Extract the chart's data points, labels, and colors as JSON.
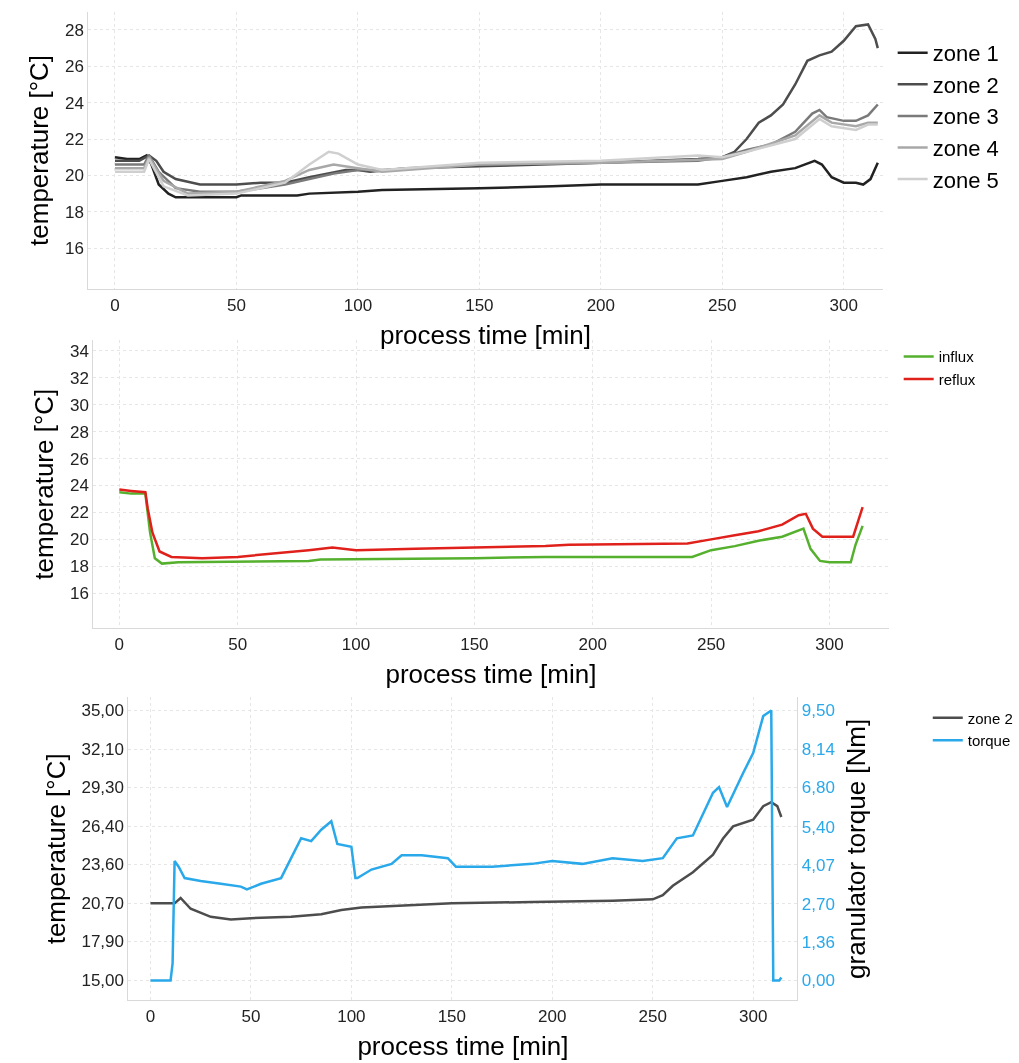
{
  "chart_data": [
    {
      "type": "line",
      "xlabel": "process time [min]",
      "ylabel": "temperature [°C]",
      "xlim": [
        -11,
        316
      ],
      "xticks": [
        0,
        50,
        100,
        150,
        200,
        250,
        300
      ],
      "ylim": [
        13.75,
        29
      ],
      "yticks": [
        16,
        18,
        20,
        22,
        24,
        26,
        28
      ],
      "grid": true,
      "legend": "top right",
      "series": [
        {
          "name": "zone 1",
          "color": "#222222",
          "x": [
            0,
            5,
            10,
            13,
            15,
            18,
            22,
            25,
            40,
            50,
            52,
            75,
            80,
            100,
            110,
            150,
            180,
            200,
            240,
            250,
            260,
            270,
            280,
            288,
            291,
            295,
            300,
            305,
            308,
            311,
            314
          ],
          "values": [
            21.0,
            20.9,
            20.9,
            21.1,
            20.6,
            19.5,
            19.0,
            18.8,
            18.8,
            18.8,
            18.9,
            18.9,
            19.0,
            19.1,
            19.2,
            19.3,
            19.4,
            19.5,
            19.5,
            19.7,
            19.9,
            20.2,
            20.4,
            20.8,
            20.6,
            19.9,
            19.6,
            19.6,
            19.5,
            19.8,
            20.7
          ]
        },
        {
          "name": "zone 2",
          "color": "#4d4d4d",
          "x": [
            0,
            10,
            14,
            17,
            20,
            25,
            35,
            50,
            60,
            70,
            80,
            95,
            100,
            105,
            120,
            150,
            200,
            240,
            250,
            255,
            260,
            265,
            270,
            275,
            280,
            285,
            290,
            295,
            300,
            305,
            310,
            313,
            314
          ],
          "values": [
            20.8,
            20.8,
            21.1,
            20.8,
            20.2,
            19.8,
            19.5,
            19.5,
            19.6,
            19.6,
            19.9,
            20.3,
            20.3,
            20.2,
            20.4,
            20.5,
            20.7,
            20.9,
            21.0,
            21.3,
            22.0,
            22.9,
            23.3,
            23.9,
            25.0,
            26.3,
            26.6,
            26.8,
            27.4,
            28.2,
            28.3,
            27.5,
            27.0
          ]
        },
        {
          "name": "zone 3",
          "color": "#7a7a7a",
          "x": [
            0,
            12,
            14,
            18,
            25,
            35,
            50,
            60,
            70,
            80,
            90,
            100,
            110,
            150,
            200,
            240,
            250,
            260,
            270,
            280,
            287,
            290,
            293,
            300,
            305,
            310,
            314
          ],
          "values": [
            20.6,
            20.6,
            21.1,
            20.2,
            19.3,
            19.1,
            19.1,
            19.3,
            19.5,
            19.8,
            20.1,
            20.3,
            20.3,
            20.6,
            20.7,
            20.8,
            21.0,
            21.4,
            21.7,
            22.4,
            23.4,
            23.6,
            23.2,
            23.0,
            23.0,
            23.3,
            23.9
          ]
        },
        {
          "name": "zone 4",
          "color": "#a8a8a8",
          "x": [
            0,
            12,
            14,
            20,
            30,
            50,
            70,
            80,
            90,
            100,
            110,
            150,
            200,
            250,
            260,
            280,
            290,
            295,
            305,
            310,
            314
          ],
          "values": [
            20.4,
            20.4,
            21.0,
            19.7,
            19.0,
            19.1,
            19.7,
            20.3,
            20.6,
            20.4,
            20.2,
            20.6,
            20.7,
            20.9,
            21.3,
            22.2,
            23.3,
            22.9,
            22.7,
            22.9,
            22.9
          ]
        },
        {
          "name": "zone 5",
          "color": "#cfcfcf",
          "x": [
            0,
            12,
            14,
            20,
            30,
            50,
            70,
            80,
            88,
            92,
            100,
            110,
            150,
            200,
            240,
            250,
            260,
            280,
            290,
            295,
            305,
            310,
            314
          ],
          "values": [
            20.2,
            20.2,
            20.9,
            19.4,
            18.9,
            19.0,
            19.6,
            20.6,
            21.3,
            21.2,
            20.6,
            20.3,
            20.7,
            20.8,
            21.1,
            21.0,
            21.3,
            22.0,
            23.1,
            22.7,
            22.5,
            22.8,
            22.8
          ]
        }
      ]
    },
    {
      "type": "line",
      "xlabel": "process time [min]",
      "ylabel": "temperature [°C]",
      "xlim": [
        -11,
        325
      ],
      "xticks": [
        0,
        50,
        100,
        150,
        200,
        250,
        300
      ],
      "ylim": [
        13.4,
        34.8
      ],
      "yticks": [
        16,
        18,
        20,
        22,
        24,
        26,
        28,
        30,
        32,
        34
      ],
      "grid": true,
      "legend": "top right",
      "series": [
        {
          "name": "influx",
          "color": "#55b02e",
          "x": [
            0,
            5,
            11,
            13,
            15,
            18,
            25,
            80,
            85,
            150,
            180,
            242,
            250,
            260,
            270,
            280,
            289,
            292,
            296,
            300,
            309,
            311,
            314
          ],
          "values": [
            23.5,
            23.4,
            23.4,
            20.5,
            18.6,
            18.2,
            18.3,
            18.4,
            18.5,
            18.6,
            18.7,
            18.7,
            19.2,
            19.5,
            19.9,
            20.2,
            20.8,
            19.3,
            18.4,
            18.3,
            18.3,
            19.6,
            21.0
          ]
        },
        {
          "name": "reflux",
          "color": "#e0201b",
          "x": [
            0,
            5,
            11,
            12,
            14,
            17,
            22,
            35,
            50,
            80,
            90,
            100,
            125,
            150,
            180,
            190,
            240,
            250,
            260,
            270,
            280,
            287,
            290,
            293,
            297,
            310,
            314
          ],
          "values": [
            23.7,
            23.6,
            23.5,
            22.3,
            20.5,
            19.1,
            18.7,
            18.6,
            18.7,
            19.2,
            19.4,
            19.2,
            19.3,
            19.4,
            19.5,
            19.6,
            19.7,
            20.0,
            20.3,
            20.6,
            21.1,
            21.8,
            21.9,
            20.8,
            20.2,
            20.2,
            22.4
          ]
        }
      ]
    },
    {
      "type": "line",
      "xlabel": "process time [min]",
      "ylabel": "temperature [°C]",
      "y2label": "granulator torque [Nm]",
      "xlim": [
        -11,
        322
      ],
      "xticks": [
        0,
        50,
        100,
        150,
        200,
        250,
        300
      ],
      "ylim": [
        13.52,
        35.96
      ],
      "yticks": [
        {
          "value": 15,
          "label": "15,00"
        },
        {
          "value": 17.9,
          "label": "17,90"
        },
        {
          "value": 20.7,
          "label": "20,70"
        },
        {
          "value": 23.6,
          "label": "23,60"
        },
        {
          "value": 26.4,
          "label": "26,40"
        },
        {
          "value": 29.3,
          "label": "29,30"
        },
        {
          "value": 32.1,
          "label": "32,10"
        },
        {
          "value": 35,
          "label": "35,00"
        }
      ],
      "y2lim": [
        -0.7,
        9.96
      ],
      "y2ticks": [
        {
          "value": 0,
          "label": "0,00"
        },
        {
          "value": 1.36,
          "label": "1,36"
        },
        {
          "value": 2.7,
          "label": "2,70"
        },
        {
          "value": 4.07,
          "label": "4,07"
        },
        {
          "value": 5.4,
          "label": "5,40"
        },
        {
          "value": 6.8,
          "label": "6,80"
        },
        {
          "value": 8.14,
          "label": "8,14"
        },
        {
          "value": 9.5,
          "label": "9,50"
        }
      ],
      "grid": true,
      "legend": "top right",
      "series": [
        {
          "name": "zone 2",
          "color": "#4d4d4d",
          "x": [
            0,
            12,
            15,
            20,
            30,
            40,
            50,
            70,
            85,
            95,
            105,
            150,
            190,
            230,
            250,
            255,
            260,
            270,
            280,
            285,
            290,
            300,
            305,
            309,
            312,
            314
          ],
          "values": [
            20.7,
            20.7,
            21.1,
            20.3,
            19.7,
            19.5,
            19.6,
            19.7,
            19.9,
            20.2,
            20.4,
            20.7,
            20.8,
            20.9,
            21.0,
            21.3,
            22.0,
            23.0,
            24.3,
            25.5,
            26.4,
            26.9,
            27.9,
            28.2,
            27.9,
            27.1
          ]
        },
        {
          "name": "torque",
          "color": "#29a8ea",
          "axis": "y2",
          "x": [
            0,
            10,
            11,
            12,
            14,
            17,
            25,
            35,
            45,
            48,
            55,
            65,
            70,
            75,
            80,
            85,
            90,
            93,
            100,
            102,
            103,
            110,
            120,
            125,
            135,
            148,
            152,
            170,
            190,
            200,
            215,
            230,
            245,
            255,
            262,
            270,
            280,
            283,
            287,
            295,
            300,
            305,
            309,
            310,
            313,
            314
          ],
          "values": [
            0,
            0,
            0.6,
            4.2,
            4.0,
            3.6,
            3.5,
            3.4,
            3.3,
            3.2,
            3.4,
            3.6,
            4.3,
            5.0,
            4.9,
            5.3,
            5.6,
            4.8,
            4.7,
            3.6,
            3.6,
            3.9,
            4.1,
            4.4,
            4.4,
            4.3,
            4.0,
            4.0,
            4.1,
            4.2,
            4.1,
            4.3,
            4.2,
            4.3,
            5.0,
            5.1,
            6.6,
            6.8,
            6.1,
            7.3,
            8.0,
            9.3,
            9.5,
            0.0,
            0.0,
            0.1
          ]
        }
      ]
    }
  ]
}
